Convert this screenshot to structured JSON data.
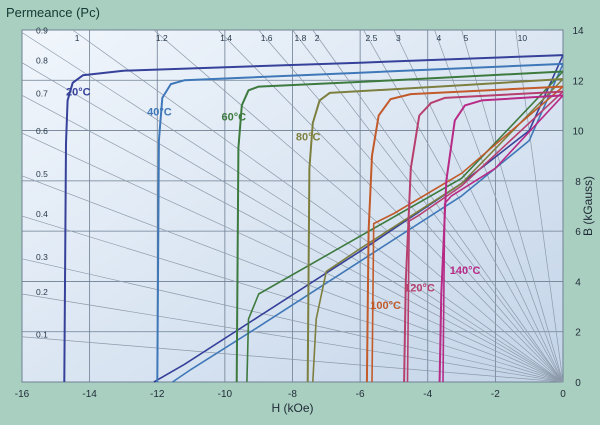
{
  "chart_data": {
    "type": "line",
    "title": "Permeance (Pc)",
    "xlabel": "H (kOe)",
    "ylabel": "B (kGauss)",
    "xlim": [
      -16,
      0
    ],
    "ylim": [
      0,
      14
    ],
    "x_ticks": [
      "-16",
      "-14",
      "-12",
      "-10",
      "-8",
      "-6",
      "-4",
      "-2",
      "0"
    ],
    "y_ticks": [
      "0",
      "2",
      "4",
      "6",
      "8",
      "10",
      "12",
      "14"
    ],
    "grid": true,
    "legend": "inline",
    "permeance_left_labels": [
      {
        "label": "0.9",
        "b": 13.9
      },
      {
        "label": "0.8",
        "b": 12.7
      },
      {
        "label": "0.7",
        "b": 11.4
      },
      {
        "label": "0.6",
        "b": 9.9
      },
      {
        "label": "0.5",
        "b": 8.2
      },
      {
        "label": "0.4",
        "b": 6.6
      },
      {
        "label": "0.3",
        "b": 4.9
      },
      {
        "label": "0.2",
        "b": 3.5
      },
      {
        "label": "0.1",
        "b": 1.8
      }
    ],
    "permeance_top_labels": [
      {
        "label": "1",
        "h": -14.5
      },
      {
        "label": "1.2",
        "h": -12.1
      },
      {
        "label": "1.4",
        "h": -10.2
      },
      {
        "label": "1.6",
        "h": -9.0
      },
      {
        "label": "1.8",
        "h": -8.0
      },
      {
        "label": "2",
        "h": -7.4
      },
      {
        "label": "2.5",
        "h": -5.9
      },
      {
        "label": "3",
        "h": -5.0
      },
      {
        "label": "4",
        "h": -3.8
      },
      {
        "label": "5",
        "h": -3.0
      },
      {
        "label": "10",
        "h": -1.4
      }
    ],
    "series": [
      {
        "name": "20°C",
        "color": "#36419a",
        "label_at": [
          -14.7,
          11.4
        ],
        "points": [
          [
            -14.75,
            0
          ],
          [
            -14.7,
            9.5
          ],
          [
            -14.65,
            11.2
          ],
          [
            -14.5,
            11.9
          ],
          [
            -14.2,
            12.2
          ],
          [
            -13.0,
            12.38
          ],
          [
            -6.0,
            12.7
          ],
          [
            0,
            13.0
          ]
        ],
        "recoil": [
          [
            -12.1,
            0
          ],
          [
            -11.2,
            0.7
          ],
          [
            -9.0,
            2.6
          ],
          [
            -6.0,
            5.2
          ],
          [
            -3.0,
            7.9
          ],
          [
            -1.0,
            10.0
          ],
          [
            0,
            13.0
          ]
        ]
      },
      {
        "name": "40°C",
        "color": "#3f78b8",
        "label_at": [
          -12.3,
          10.6
        ],
        "points": [
          [
            -12.0,
            0
          ],
          [
            -11.95,
            9.6
          ],
          [
            -11.85,
            11.3
          ],
          [
            -11.6,
            11.85
          ],
          [
            -11.2,
            12.0
          ],
          [
            -6.0,
            12.3
          ],
          [
            0,
            12.65
          ]
        ],
        "recoil": [
          [
            -11.55,
            0
          ],
          [
            -11.0,
            0.5
          ],
          [
            -9.0,
            2.2
          ],
          [
            -6.0,
            4.8
          ],
          [
            -3.0,
            7.4
          ],
          [
            -1.0,
            9.6
          ],
          [
            0,
            12.65
          ]
        ]
      },
      {
        "name": "60°C",
        "color": "#3d7a3e",
        "label_at": [
          -10.1,
          10.4
        ],
        "points": [
          [
            -9.65,
            0
          ],
          [
            -9.6,
            9.3
          ],
          [
            -9.5,
            11.0
          ],
          [
            -9.3,
            11.6
          ],
          [
            -9.0,
            11.75
          ],
          [
            -5.0,
            12.0
          ],
          [
            0,
            12.35
          ]
        ],
        "recoil": [
          [
            -9.35,
            0
          ],
          [
            -9.3,
            2.5
          ],
          [
            -9.0,
            3.5
          ],
          [
            -6.0,
            5.8
          ],
          [
            -3.0,
            8.1
          ],
          [
            0,
            12.35
          ]
        ]
      },
      {
        "name": "80°C",
        "color": "#7d7f3e",
        "label_at": [
          -7.9,
          9.6
        ],
        "points": [
          [
            -7.55,
            0
          ],
          [
            -7.5,
            8.5
          ],
          [
            -7.4,
            10.3
          ],
          [
            -7.2,
            11.2
          ],
          [
            -6.9,
            11.5
          ],
          [
            -3.0,
            11.8
          ],
          [
            0,
            12.05
          ]
        ],
        "recoil": [
          [
            -7.4,
            0
          ],
          [
            -7.3,
            2.5
          ],
          [
            -7.0,
            4.4
          ],
          [
            -6.0,
            5.3
          ],
          [
            -3.0,
            7.9
          ],
          [
            0,
            12.05
          ]
        ]
      },
      {
        "name": "100°C",
        "color": "#c25a2a",
        "label_at": [
          -5.7,
          2.9
        ],
        "points": [
          [
            -5.8,
            0
          ],
          [
            -5.75,
            6.0
          ],
          [
            -5.65,
            9.0
          ],
          [
            -5.45,
            10.6
          ],
          [
            -5.1,
            11.25
          ],
          [
            -4.5,
            11.45
          ],
          [
            0,
            11.75
          ]
        ],
        "recoil": [
          [
            -5.65,
            0
          ],
          [
            -5.6,
            6.3
          ],
          [
            -5.0,
            6.7
          ],
          [
            -3.0,
            8.3
          ],
          [
            0,
            11.75
          ]
        ]
      },
      {
        "name": "120°C",
        "color": "#b73f6e",
        "label_at": [
          -4.7,
          3.6
        ],
        "points": [
          [
            -4.7,
            0
          ],
          [
            -4.65,
            4.0
          ],
          [
            -4.5,
            8.5
          ],
          [
            -4.25,
            10.6
          ],
          [
            -3.9,
            11.1
          ],
          [
            -3.5,
            11.3
          ],
          [
            0,
            11.55
          ]
        ],
        "recoil": [
          [
            -4.6,
            0
          ],
          [
            -4.55,
            6.4
          ],
          [
            -4.3,
            6.6
          ],
          [
            -3.0,
            7.8
          ],
          [
            0,
            11.55
          ]
        ]
      },
      {
        "name": "140°C",
        "color": "#b72a86",
        "label_at": [
          -3.35,
          4.3
        ],
        "points": [
          [
            -3.65,
            0
          ],
          [
            -3.6,
            3.5
          ],
          [
            -3.45,
            8.0
          ],
          [
            -3.2,
            10.4
          ],
          [
            -2.9,
            11.0
          ],
          [
            -2.4,
            11.2
          ],
          [
            0,
            11.4
          ]
        ],
        "recoil": [
          [
            -3.55,
            0
          ],
          [
            -3.5,
            7.1
          ],
          [
            -3.3,
            7.4
          ],
          [
            -2.0,
            8.5
          ],
          [
            0,
            11.4
          ]
        ]
      }
    ]
  }
}
